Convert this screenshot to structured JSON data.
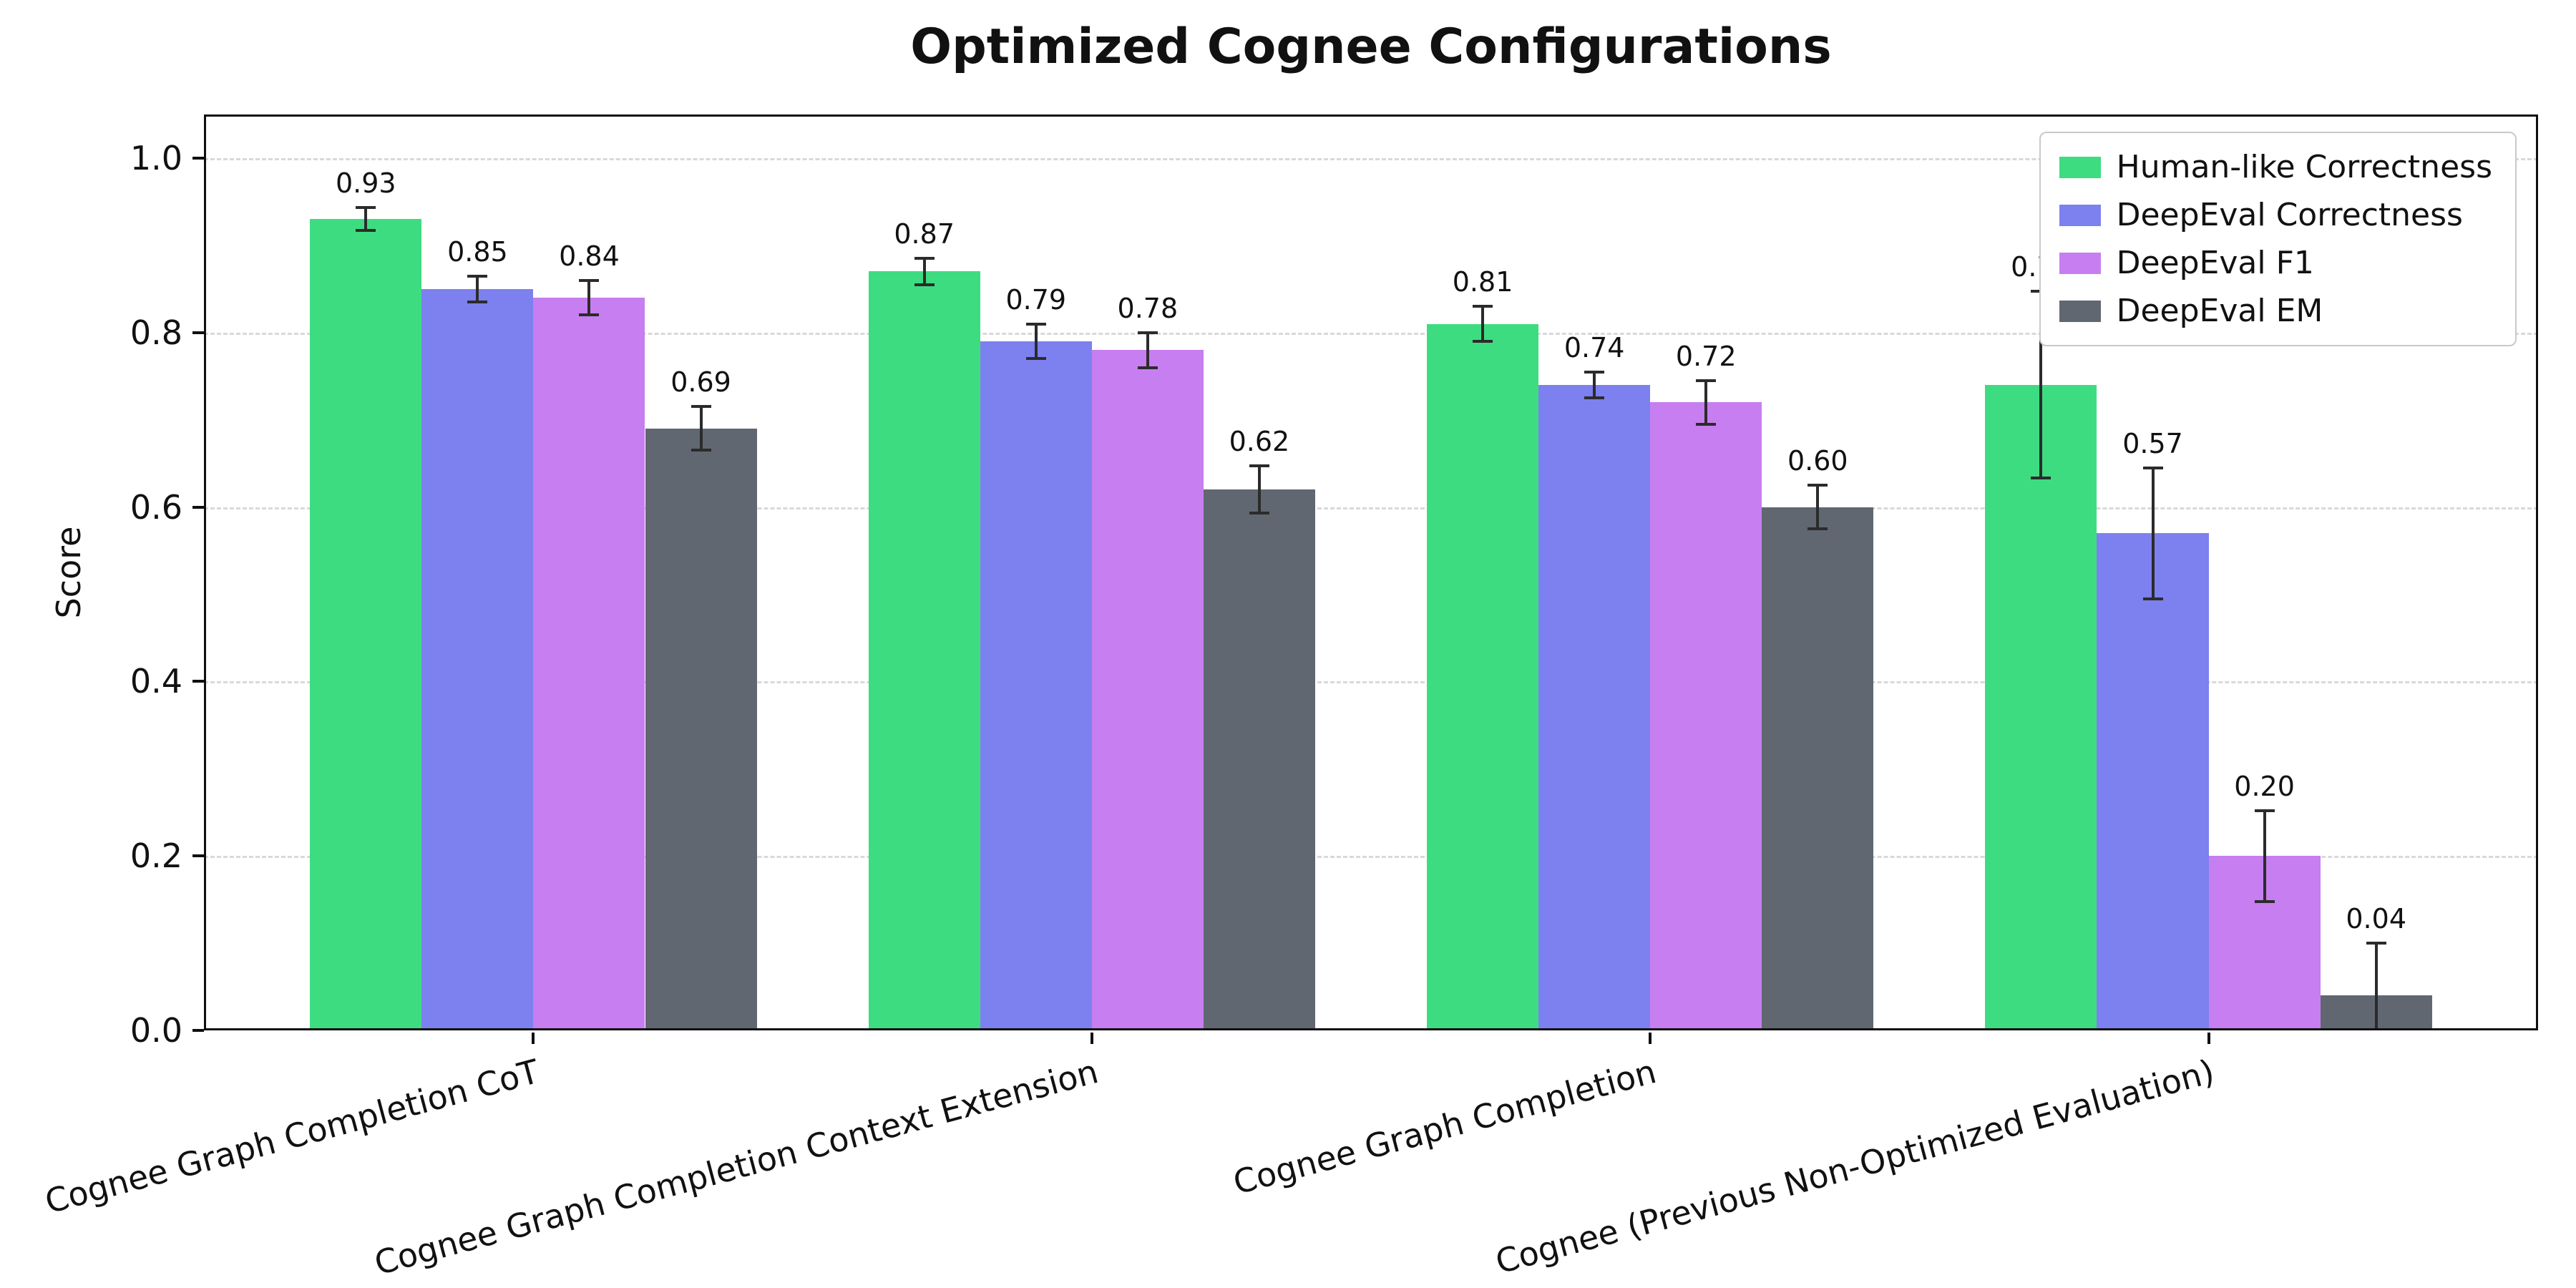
{
  "chart_data": {
    "type": "bar",
    "title": "Optimized Cognee Configurations",
    "xlabel": "",
    "ylabel": "Score",
    "ylim": [
      0,
      1.05
    ],
    "yticks": [
      0.0,
      0.2,
      0.4,
      0.6,
      0.8,
      1.0
    ],
    "grid": "horizontal-dashed",
    "legend_position": "upper right",
    "error_bar_color": "#2b2b2b",
    "categories": [
      "Cognee Graph Completion CoT",
      "Cognee Graph Completion Context Extension",
      "Cognee Graph Completion",
      "Cognee (Previous Non-Optimized Evaluation)"
    ],
    "series": [
      {
        "name": "Human-like Correctness",
        "color": "#3edc81",
        "values": [
          0.93,
          0.87,
          0.81,
          0.74
        ],
        "errors": [
          0.013,
          0.015,
          0.02,
          0.107
        ]
      },
      {
        "name": "DeepEval Correctness",
        "color": "#7d80ef",
        "values": [
          0.85,
          0.79,
          0.74,
          0.57
        ],
        "errors": [
          0.015,
          0.02,
          0.015,
          0.075
        ]
      },
      {
        "name": "DeepEval F1",
        "color": "#c77ef0",
        "values": [
          0.84,
          0.78,
          0.72,
          0.2
        ],
        "errors": [
          0.02,
          0.02,
          0.025,
          0.052
        ]
      },
      {
        "name": "DeepEval EM",
        "color": "#616771",
        "values": [
          0.69,
          0.62,
          0.6,
          0.04
        ],
        "errors": [
          0.025,
          0.027,
          0.025,
          0.06
        ]
      }
    ]
  }
}
